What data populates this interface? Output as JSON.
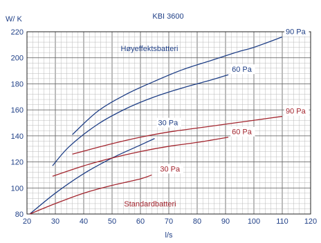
{
  "chart_data": {
    "type": "line",
    "title": "KBI 3600",
    "ylabel": "W/ K",
    "xlabel": "l/s",
    "xlim": [
      20,
      120
    ],
    "ylim": [
      80,
      220
    ],
    "x_ticks": [
      20,
      30,
      40,
      50,
      60,
      70,
      80,
      90,
      100,
      110,
      120
    ],
    "y_ticks": [
      80,
      100,
      120,
      140,
      160,
      180,
      200,
      220
    ],
    "grid": true,
    "annotations": {
      "high_group": "Høyeffektsbatteri",
      "standard_group": "Standardbatteri"
    },
    "series": [
      {
        "name": "90 Pa",
        "group": "high",
        "color": "#1f3f86",
        "points": [
          [
            36,
            141
          ],
          [
            45,
            159
          ],
          [
            55,
            172
          ],
          [
            65,
            182
          ],
          [
            75,
            191
          ],
          [
            85,
            198
          ],
          [
            95,
            205
          ],
          [
            100,
            208
          ],
          [
            110,
            216
          ]
        ]
      },
      {
        "name": "60 Pa",
        "group": "high",
        "color": "#1f3f86",
        "points": [
          [
            29,
            117
          ],
          [
            35,
            132
          ],
          [
            45,
            149
          ],
          [
            55,
            161
          ],
          [
            65,
            170
          ],
          [
            75,
            177
          ],
          [
            85,
            183
          ],
          [
            91,
            187
          ]
        ]
      },
      {
        "name": "30 Pa",
        "group": "high",
        "color": "#1f3f86",
        "points": [
          [
            21,
            80
          ],
          [
            30,
            96
          ],
          [
            40,
            111
          ],
          [
            50,
            123
          ],
          [
            60,
            133
          ],
          [
            65,
            138
          ]
        ]
      },
      {
        "name": "90 Pa",
        "group": "standard",
        "color": "#a3252e",
        "points": [
          [
            36,
            126
          ],
          [
            50,
            134
          ],
          [
            60,
            139
          ],
          [
            70,
            143
          ],
          [
            80,
            146
          ],
          [
            90,
            149
          ],
          [
            100,
            152
          ],
          [
            110,
            155
          ]
        ]
      },
      {
        "name": "60 Pa",
        "group": "standard",
        "color": "#a3252e",
        "points": [
          [
            29,
            109
          ],
          [
            40,
            117
          ],
          [
            50,
            123
          ],
          [
            60,
            128
          ],
          [
            70,
            132
          ],
          [
            80,
            135
          ],
          [
            91,
            139
          ]
        ]
      },
      {
        "name": "30 Pa",
        "group": "standard",
        "color": "#a3252e",
        "points": [
          [
            21,
            80
          ],
          [
            30,
            88
          ],
          [
            40,
            96
          ],
          [
            50,
            102
          ],
          [
            60,
            107
          ],
          [
            64,
            110
          ]
        ]
      }
    ]
  }
}
